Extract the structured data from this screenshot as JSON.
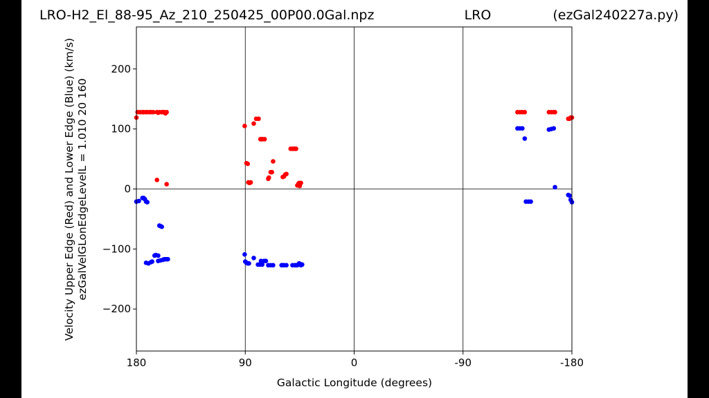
{
  "chart_data": {
    "type": "scatter",
    "title_left": "LRO-H2_El_88-95_Az_210_250425_00P00.0Gal.npz",
    "title_center": "LRO",
    "title_right": "(ezGal240227a.py)",
    "xlabel": "Galactic Longitude (degrees)",
    "ylabel_line1": "Velocity Upper Edge (Red) and Lower Edge (Blue)  (km/s)",
    "ylabel_line2": "ezGalVelGLonEdgeLevelL = 1.010  20  160",
    "xlim": [
      180,
      -180
    ],
    "ylim": [
      -270,
      270
    ],
    "x_ticks": [
      180,
      90,
      0,
      -90,
      -180
    ],
    "x_tick_labels": [
      "180",
      "90",
      "0",
      "-90",
      "-180"
    ],
    "y_ticks": [
      200,
      100,
      0,
      -100,
      -200
    ],
    "y_tick_labels": [
      "200",
      "100",
      "0",
      "−100",
      "−200"
    ],
    "vertical_grid": [
      90,
      0,
      -90
    ],
    "horizontal_grid": [
      0
    ],
    "colors": {
      "red": "#ff0000",
      "blue": "#0000ff"
    },
    "series": [
      {
        "color": "red",
        "points": [
          [
            180,
            119
          ],
          [
            179,
            128
          ],
          [
            177,
            128
          ],
          [
            175,
            128
          ],
          [
            174,
            128
          ],
          [
            172,
            128
          ],
          [
            171,
            128
          ],
          [
            169,
            128
          ],
          [
            168,
            128
          ],
          [
            166,
            128
          ],
          [
            163,
            128
          ],
          [
            162,
            127
          ],
          [
            161,
            128
          ],
          [
            159,
            128
          ],
          [
            158,
            128
          ],
          [
            157,
            128
          ],
          [
            156,
            126
          ],
          [
            155,
            128
          ],
          [
            163,
            15
          ],
          [
            155,
            8
          ],
          [
            90.5,
            105
          ],
          [
            89,
            43
          ],
          [
            88,
            42
          ],
          [
            87.5,
            11
          ],
          [
            86.5,
            10
          ],
          [
            85.5,
            11
          ],
          [
            83,
            109
          ],
          [
            81,
            117
          ],
          [
            79,
            117
          ],
          [
            77.5,
            83
          ],
          [
            76.5,
            83
          ],
          [
            75.5,
            83
          ],
          [
            74,
            83
          ],
          [
            71,
            17
          ],
          [
            70.5,
            19
          ],
          [
            69,
            28
          ],
          [
            68,
            28
          ],
          [
            67,
            46
          ],
          [
            59,
            20
          ],
          [
            58,
            21
          ],
          [
            57,
            24
          ],
          [
            56,
            25
          ],
          [
            52.5,
            67
          ],
          [
            51,
            67
          ],
          [
            50,
            67
          ],
          [
            49,
            67
          ],
          [
            48,
            67
          ],
          [
            47,
            6
          ],
          [
            46,
            9
          ],
          [
            45.5,
            10
          ],
          [
            45,
            5
          ],
          [
            44,
            10
          ]
        ]
      },
      {
        "color": "blue",
        "points": [
          [
            180,
            -21
          ],
          [
            178,
            -20
          ],
          [
            175,
            -15
          ],
          [
            174,
            -15
          ],
          [
            173,
            -17
          ],
          [
            172,
            -21
          ],
          [
            171,
            -22
          ],
          [
            172,
            -123
          ],
          [
            170,
            -124
          ],
          [
            168,
            -122
          ],
          [
            167,
            -121
          ],
          [
            165,
            -111
          ],
          [
            164,
            -110
          ],
          [
            162,
            -111
          ],
          [
            161,
            -61
          ],
          [
            160,
            -62
          ],
          [
            159,
            -63
          ],
          [
            162,
            -120
          ],
          [
            160,
            -119
          ],
          [
            158,
            -118
          ],
          [
            157,
            -117
          ],
          [
            156,
            -117
          ],
          [
            155,
            -117
          ],
          [
            154,
            -117
          ],
          [
            90.5,
            -109
          ],
          [
            90,
            -121
          ],
          [
            89,
            -123
          ],
          [
            88,
            -124
          ],
          [
            87,
            -124
          ],
          [
            83,
            -115
          ],
          [
            79.5,
            -126
          ],
          [
            78,
            -126
          ],
          [
            77,
            -120
          ],
          [
            76,
            -126
          ],
          [
            74.5,
            -120
          ],
          [
            73,
            -120
          ],
          [
            71,
            -127
          ],
          [
            69,
            -127
          ],
          [
            67,
            -127
          ],
          [
            60,
            -127
          ],
          [
            59,
            -127
          ],
          [
            58,
            -127
          ],
          [
            56,
            -127
          ],
          [
            51,
            -127
          ],
          [
            49,
            -127
          ],
          [
            48,
            -127
          ],
          [
            47,
            -127
          ],
          [
            45.5,
            -124
          ],
          [
            44.5,
            -125
          ],
          [
            44,
            -127
          ],
          [
            43,
            -126
          ],
          [
            -135,
            101
          ],
          [
            -137,
            101
          ],
          [
            -139,
            101
          ],
          [
            -141,
            84
          ],
          [
            -142,
            -21
          ],
          [
            -144,
            -21
          ],
          [
            -146,
            -21
          ],
          [
            -161,
            99
          ],
          [
            -163,
            100
          ],
          [
            -165,
            101
          ],
          [
            -166,
            3
          ],
          [
            -177,
            -10
          ],
          [
            -178,
            -11
          ],
          [
            -179,
            -18
          ],
          [
            -180,
            -22
          ]
        ]
      },
      {
        "color": "red",
        "points": [
          [
            -135,
            128
          ],
          [
            -137,
            128
          ],
          [
            -139,
            128
          ],
          [
            -141,
            128
          ],
          [
            -161,
            128
          ],
          [
            -163,
            128
          ],
          [
            -165,
            128
          ],
          [
            -166,
            128
          ],
          [
            -177,
            117
          ],
          [
            -178,
            117
          ],
          [
            -179,
            119
          ],
          [
            -180,
            119
          ]
        ]
      }
    ]
  }
}
